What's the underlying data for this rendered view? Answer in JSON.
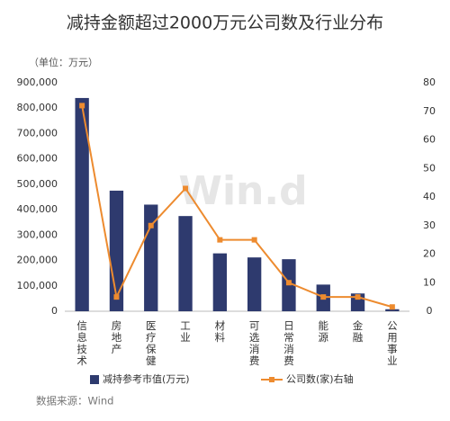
{
  "chart_data": {
    "type": "bar",
    "title": "减持金额超过2000万元公司数及行业分布",
    "subtitle": "（单位：万元）",
    "watermark": "Win.d",
    "source": "数据来源：Wind",
    "categories": [
      "信息技术",
      "房地产",
      "医疗保健",
      "工业",
      "材料",
      "可选消费",
      "日常消费",
      "能源",
      "金融",
      "公用事业"
    ],
    "series": [
      {
        "name": "减持参考市值(万元)",
        "type": "bar",
        "color": "#2e3a6e",
        "values": [
          840000,
          475000,
          420000,
          375000,
          228000,
          212000,
          205000,
          105000,
          70000,
          8000
        ]
      },
      {
        "name": "公司数(家)右轴",
        "type": "line",
        "axis": "y2",
        "color": "#ed8b2f",
        "values": [
          72,
          5,
          30,
          43,
          25,
          25,
          10,
          5,
          5,
          1.5
        ]
      }
    ],
    "ylim": [
      0,
      900000
    ],
    "yticks": [
      0,
      {
        "value": 100000,
        "label": "100,000"
      },
      {
        "value": 200000,
        "label": "200,000"
      },
      {
        "value": 300000,
        "label": "300,000"
      },
      {
        "value": 400000,
        "label": "400,000"
      },
      {
        "value": 500000,
        "label": "500,000"
      },
      {
        "value": 600000,
        "label": "600,000"
      },
      {
        "value": 700000,
        "label": "700,000"
      },
      {
        "value": 800000,
        "label": "800,000"
      },
      {
        "value": 900000,
        "label": "900,000"
      }
    ],
    "y2lim": [
      0,
      80
    ],
    "y2ticks": [
      0,
      10,
      20,
      30,
      40,
      50,
      60,
      70,
      80
    ]
  }
}
